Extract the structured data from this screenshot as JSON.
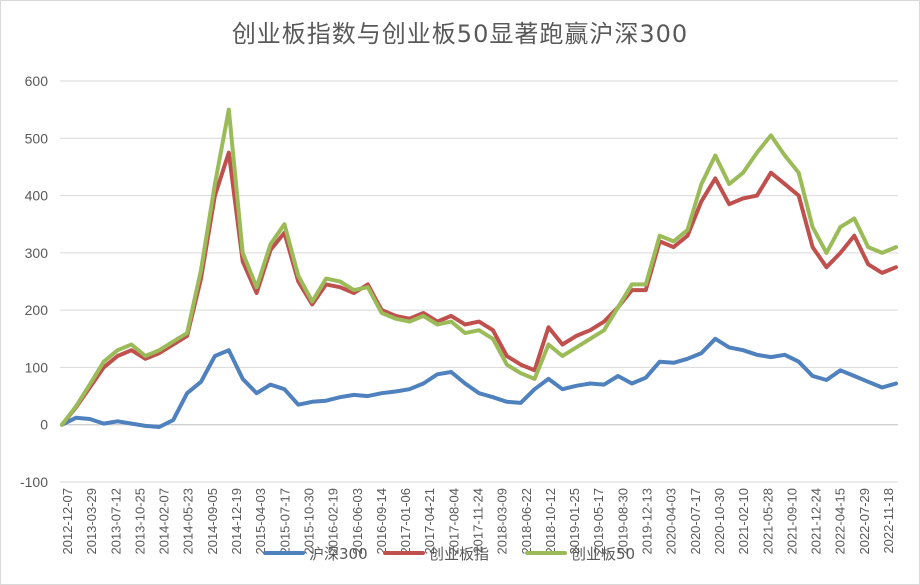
{
  "chart_data": {
    "type": "line",
    "title": "创业板指数与创业板50显著跑赢沪深300",
    "xlabel": "",
    "ylabel": "",
    "ylim": [
      -100,
      600
    ],
    "yticks": [
      -100,
      0,
      100,
      200,
      300,
      400,
      500,
      600
    ],
    "grid": true,
    "legend": "bottom",
    "x_tick_labels": [
      "2012-12-07",
      "2013-03-29",
      "2013-07-12",
      "2013-10-25",
      "2014-02-07",
      "2014-05-23",
      "2014-09-05",
      "2014-12-19",
      "2015-04-03",
      "2015-07-17",
      "2015-10-30",
      "2016-02-19",
      "2016-06-03",
      "2016-09-14",
      "2017-01-06",
      "2017-04-21",
      "2017-08-04",
      "2017-11-24",
      "2018-03-09",
      "2018-06-22",
      "2018-10-12",
      "2019-01-25",
      "2019-05-17",
      "2019-08-30",
      "2019-12-13",
      "2020-04-03",
      "2020-07-17",
      "2020-10-30",
      "2021-02-10",
      "2021-05-28",
      "2021-09-10",
      "2021-12-24",
      "2022-04-15",
      "2022-07-29",
      "2022-11-18"
    ],
    "series": [
      {
        "name": "沪深300",
        "color": "#4e81bd",
        "values": [
          0,
          12,
          10,
          2,
          6,
          2,
          -2,
          -4,
          8,
          55,
          75,
          120,
          130,
          80,
          55,
          70,
          62,
          35,
          40,
          42,
          48,
          52,
          50,
          55,
          58,
          62,
          72,
          88,
          92,
          72,
          55,
          48,
          40,
          38,
          62,
          80,
          62,
          68,
          72,
          70,
          85,
          72,
          82,
          110,
          108,
          115,
          125,
          150,
          135,
          130,
          122,
          118,
          122,
          110,
          85,
          78,
          95,
          85,
          75,
          65,
          72
        ]
      },
      {
        "name": "创业板指",
        "color": "#c0504d",
        "values": [
          0,
          30,
          65,
          100,
          120,
          130,
          115,
          125,
          140,
          155,
          255,
          400,
          475,
          285,
          230,
          305,
          335,
          250,
          210,
          245,
          240,
          230,
          245,
          200,
          190,
          185,
          195,
          180,
          190,
          175,
          180,
          165,
          120,
          105,
          95,
          170,
          140,
          155,
          165,
          180,
          205,
          235,
          235,
          320,
          310,
          330,
          390,
          430,
          385,
          395,
          400,
          440,
          420,
          400,
          310,
          275,
          300,
          330,
          280,
          265,
          275
        ]
      },
      {
        "name": "创业板50",
        "color": "#9bbb59",
        "values": [
          0,
          32,
          70,
          110,
          130,
          140,
          120,
          130,
          145,
          160,
          270,
          420,
          550,
          300,
          240,
          315,
          350,
          260,
          215,
          255,
          250,
          235,
          240,
          195,
          185,
          180,
          190,
          175,
          180,
          160,
          165,
          150,
          105,
          90,
          80,
          140,
          120,
          135,
          150,
          165,
          205,
          245,
          245,
          330,
          320,
          340,
          420,
          470,
          420,
          440,
          475,
          505,
          470,
          440,
          345,
          300,
          345,
          360,
          310,
          300,
          310
        ]
      }
    ]
  }
}
